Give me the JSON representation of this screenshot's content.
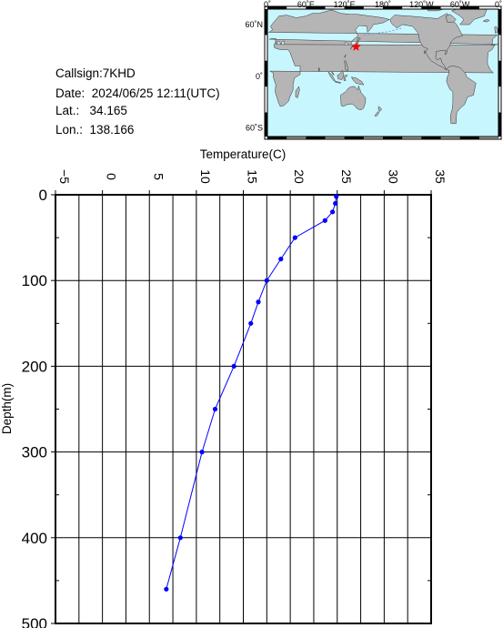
{
  "header": {
    "callsign_label": "Callsign:",
    "callsign": "7KHD",
    "date_label": "Date:",
    "date": "2024/06/25 12:11(UTC)",
    "lat_label": "Lat.:",
    "lat": "34.165",
    "lon_label": "Lon.:",
    "lon": "138.166"
  },
  "map": {
    "lon_ticks": [
      "0˚",
      "60˚E",
      "120˚E",
      "180˚",
      "120˚W",
      "60˚W",
      "0˚"
    ],
    "lat_ticks": [
      "60˚N",
      "0˚",
      "60˚S"
    ],
    "ocean_color": "#c8f6ff",
    "land_color": "#b5b5b5",
    "marker_color": "#ff0000",
    "marker_lat": 34.165,
    "marker_lon": 138.166
  },
  "chart_data": {
    "type": "line",
    "title": "",
    "xlabel": "Temperature(C)",
    "ylabel": "Depth(m)",
    "xlim": [
      -5,
      35
    ],
    "ylim": [
      0,
      500
    ],
    "y_inverted": true,
    "x_ticks": [
      -5,
      0,
      5,
      10,
      15,
      20,
      25,
      30,
      35
    ],
    "y_ticks": [
      0,
      100,
      200,
      300,
      400,
      500
    ],
    "grid": true,
    "line_color": "#0000ff",
    "series": [
      {
        "temperature": [
          24.9,
          24.8,
          24.5,
          23.7,
          20.5,
          19.0,
          17.5,
          16.6,
          15.8,
          14.0,
          12.0,
          10.6,
          8.3,
          6.8
        ],
        "depth": [
          2,
          10,
          20,
          30,
          50,
          75,
          100,
          125,
          150,
          200,
          250,
          300,
          400,
          460
        ]
      }
    ]
  }
}
